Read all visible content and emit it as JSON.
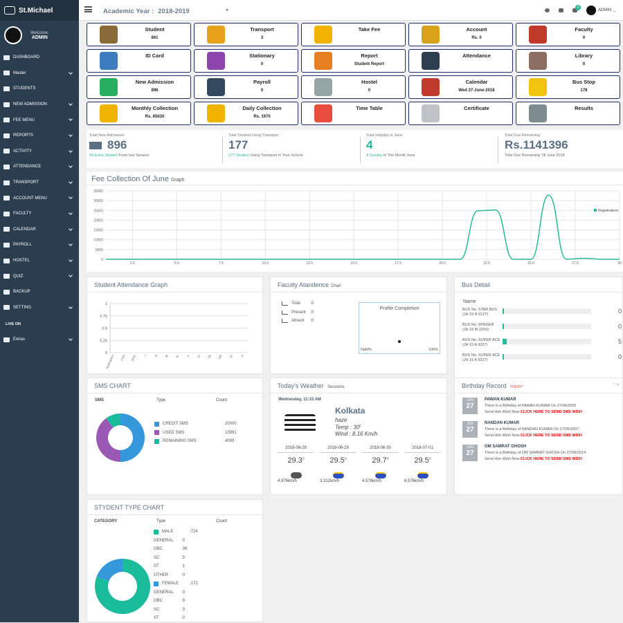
{
  "sidebar": {
    "brand": "St.Michael",
    "welcome": "Welcome,",
    "user": "ADMIN",
    "items": [
      {
        "label": "DASHBOARD"
      },
      {
        "label": "Master"
      },
      {
        "label": "STUDENTS"
      },
      {
        "label": "NEW ADMISSION"
      },
      {
        "label": "FEE MENU"
      },
      {
        "label": "REPORTS"
      },
      {
        "label": "ACTIVITY"
      },
      {
        "label": "ATTENDANCE"
      },
      {
        "label": "TRANSPORT"
      },
      {
        "label": "ACCOUNT MENU"
      },
      {
        "label": "FACULTY"
      },
      {
        "label": "CALENDAR"
      },
      {
        "label": "PAYROLL"
      },
      {
        "label": "HOSTEL"
      },
      {
        "label": "QUIZ"
      },
      {
        "label": "BACKUP"
      },
      {
        "label": "SETTING"
      }
    ],
    "live_on": "LIVE ON",
    "extras": "Extras"
  },
  "topbar": {
    "ay_label": "Academic Year :",
    "ay_value": "2018-2019",
    "dropdown": "▾",
    "badge": "0",
    "admin": "ADMIN"
  },
  "tiles": [
    {
      "label": "Student",
      "value": "861",
      "color": "#8b6a3a"
    },
    {
      "label": "Transport",
      "value": "3",
      "color": "#e5a21a"
    },
    {
      "label": "Take Fee",
      "value": "",
      "color": "#f0b400"
    },
    {
      "label": "Account",
      "value": "Rs. 0",
      "color": "#d9a21b"
    },
    {
      "label": "Faculty",
      "value": "0",
      "color": "#c0392b"
    },
    {
      "label": "ID Card",
      "value": "",
      "color": "#3d7dbf"
    },
    {
      "label": "Stationary",
      "value": "0",
      "color": "#8e44ad"
    },
    {
      "label": "Report",
      "value": "Student Report",
      "color": "#e67e22"
    },
    {
      "label": "Attendance",
      "value": "",
      "color": "#2c3e50"
    },
    {
      "label": "Library",
      "value": "0",
      "color": "#8d6e63"
    },
    {
      "label": "New Admission",
      "value": "896",
      "color": "#27ae60"
    },
    {
      "label": "Payroll",
      "value": "0",
      "color": "#34495e"
    },
    {
      "label": "Hostel",
      "value": "0",
      "color": "#95a5a6"
    },
    {
      "label": "Calendar",
      "value": "Wed 27-June-2018",
      "color": "#c0392b"
    },
    {
      "label": "Bus Stop",
      "value": "178",
      "color": "#f1c40f"
    },
    {
      "label": "Monthly Collection",
      "value": "Rs. 85630",
      "color": "#f0b400"
    },
    {
      "label": "Daily Collection",
      "value": "Rs. 1970",
      "color": "#f0b400"
    },
    {
      "label": "Time Table",
      "value": "",
      "color": "#e74c3c"
    },
    {
      "label": "Certificate",
      "value": "",
      "color": "#bdc3c7"
    },
    {
      "label": "Results",
      "value": "",
      "color": "#7f8c8d"
    }
  ],
  "stats": [
    {
      "label": "Total New Admission",
      "value": "896",
      "sub_em": "56 Extra Student",
      "sub": "From last Session"
    },
    {
      "label": "Total Student Using Transport",
      "value": "177",
      "sub_em": "177 Student",
      "sub": "Using Transport In Your School"
    },
    {
      "label": "Total Holyday in June",
      "value": "4",
      "sub_em": "4 Sunday",
      "sub": "In The Month June"
    },
    {
      "label": "Total Due Remaining",
      "value": "Rs.1141396",
      "sub_em": "",
      "sub": "Total Due Remaining Till June 2018"
    }
  ],
  "fee": {
    "title": "Fee Collection Of June",
    "small": "Graph",
    "legend": "Registrations"
  },
  "chart_data": [
    {
      "type": "area",
      "title": "Fee Collection Of June",
      "legend": [
        "Registrations"
      ],
      "color": "#26b99a",
      "yticks": [
        0,
        5000,
        10000,
        15000,
        20000,
        25000,
        30000,
        35000
      ],
      "xticks": [
        "2.5",
        "5.0",
        "7.5",
        "10.0",
        "12.5",
        "15.0",
        "17.5",
        "20.0",
        "22.5",
        "25.0",
        "27.5",
        "30"
      ],
      "x": [
        1,
        20,
        21,
        22,
        23,
        24,
        25,
        26,
        27,
        28,
        29,
        30
      ],
      "y": [
        0,
        0,
        0,
        24800,
        25200,
        0,
        0,
        32800,
        0,
        500,
        0,
        0
      ],
      "ylim": [
        0,
        35000
      ],
      "xlim": [
        1,
        30
      ]
    },
    {
      "type": "line",
      "title": "Student Attendance Graph",
      "categories": [
        "NURSERY",
        "LKG",
        "UKG",
        "I",
        "II",
        "III",
        "IV",
        "V",
        "VI",
        "VII",
        "VIII",
        "IX",
        "X"
      ],
      "yticks": [
        "1",
        "0.75",
        "0.5",
        "0.25",
        "0"
      ],
      "ylim": [
        0,
        1
      ]
    },
    {
      "type": "pie",
      "title": "SMS CHART",
      "values": [
        20000,
        15991,
        4009
      ],
      "labels": [
        "CREDIT SMS",
        "USED SMS",
        "REMAINING SMS"
      ],
      "colors": [
        "#3498db",
        "#9b59b6",
        "#1abc9c"
      ]
    },
    {
      "type": "pie",
      "title": "STYDENT TYPE CHART",
      "values": [
        724,
        172
      ],
      "labels": [
        "MALE",
        "FEMALE"
      ],
      "colors": [
        "#1abc9c",
        "#3498db"
      ]
    }
  ],
  "attendance": {
    "title": "Student Attendance Graph"
  },
  "faculty": {
    "title": "Faculty Atandence",
    "small": "Chart",
    "rows": [
      {
        "label": "Total",
        "value": ":0"
      },
      {
        "label": "Present",
        "value": ":0"
      },
      {
        "label": "Absent",
        "value": ":0"
      }
    ],
    "profile": "Profile Completion",
    "nan": "NaN%",
    "pct": "100%"
  },
  "bus": {
    "title": "Bus Detail",
    "name_h": "Name",
    "rows": [
      {
        "name": "BUS No. STAR BUS (JH 15 R 0127)",
        "count": "0",
        "fill": 0
      },
      {
        "name": "BUS No. WINGER (JH 15 M 2203)",
        "count": "0",
        "fill": 0
      },
      {
        "name": "BUS No. SUPER ACE (JH 15 A 9227)",
        "count": "5",
        "fill": 0.05
      },
      {
        "name": "BUS No. SUPER ACE (JH 15 A 9227)",
        "count": "0",
        "fill": 0
      }
    ]
  },
  "sms": {
    "title": "SMS CHART",
    "h1": "SMS",
    "h2": "Type",
    "h3": "Count",
    "rows": [
      {
        "label": "CREDIT SMS",
        "count": "20000",
        "color": "#3498db"
      },
      {
        "label": "USED SMS",
        "count": "15991",
        "color": "#9b59b6"
      },
      {
        "label": "REMAINING SMS",
        "count": "4009",
        "color": "#1abc9c"
      }
    ]
  },
  "weather": {
    "title": "Today's Weather",
    "small": "Sessions",
    "date": "Wednesday, 11:33 AM",
    "city": "Kolkata",
    "cond": "haze",
    "temp": "Temp : 30",
    "temp_unit": "c",
    "wind": "Wind : 8.16 Km/h",
    "days": [
      {
        "date": "2018-06-28",
        "temp": "29.3",
        "wind": "4.976km/h"
      },
      {
        "date": "2018-06-29",
        "temp": "29.5",
        "wind": "3.312km/h"
      },
      {
        "date": "2018-06-30",
        "temp": "29.7",
        "wind": "4.576km/h"
      },
      {
        "date": "2018-07-01",
        "temp": "29.5",
        "wind": "6.576km/h"
      }
    ]
  },
  "birthday": {
    "title": "Birthday Record",
    "today": "TODAY*",
    "month": "JUN",
    "day": "27",
    "items": [
      {
        "name": "PAWAN KUMAR",
        "text": "There is a Birthday of PAWAN KUMAR On 27/06/2005",
        "wish": "Send Him Wish Now:",
        "link": "CLICK HERE TO SEND SMS WISH"
      },
      {
        "name": "NANDAN KUMAR",
        "text": "There is a Birthday of NANDAN KUMAR On 27/06/2007",
        "wish": "Send Him Wish Now:",
        "link": "CLICK HERE TO SEND SMS WISH"
      },
      {
        "name": "OM SAMRAT GHOSH",
        "text": "There is a Birthday of OM SAMRAT GHOSH On 27/06/2014",
        "wish": "Send Him Wish Now:",
        "link": "CLICK HERE TO SEND SMS WISH"
      }
    ]
  },
  "stype": {
    "title": "STYDENT TYPE CHART",
    "h1": "CATEGORY",
    "h2": "Type",
    "h3": "Count",
    "rows": [
      {
        "label": "MALE",
        "val": ":724",
        "sw": "#1abc9c"
      },
      {
        "label": "GENERAL",
        "val": ":0"
      },
      {
        "label": "OBC",
        "val": ":36"
      },
      {
        "label": "SC",
        "val": ":5"
      },
      {
        "label": "ST",
        "val": ":1"
      },
      {
        "label": "OTHER",
        "val": ":0"
      },
      {
        "label": "FEMALE",
        "val": ":172",
        "sw": "#3498db"
      },
      {
        "label": "GENERAL",
        "val": ":0"
      },
      {
        "label": "OBC",
        "val": ":9"
      },
      {
        "label": "SC",
        "val": ":3"
      },
      {
        "label": "ST",
        "val": ":0"
      }
    ]
  }
}
